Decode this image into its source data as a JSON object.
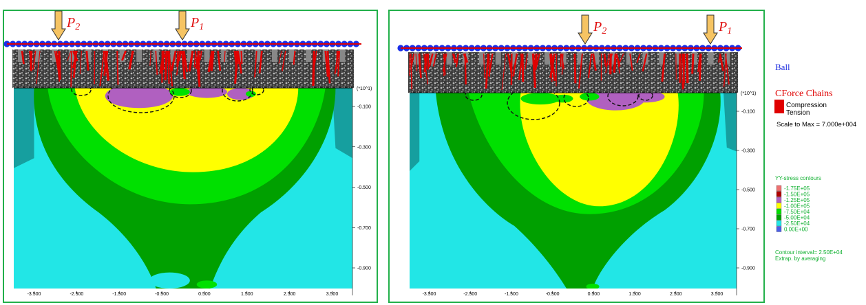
{
  "panels": [
    {
      "loads": [
        {
          "symbol": "P",
          "index": "2"
        },
        {
          "symbol": "P",
          "index": "1"
        }
      ],
      "y_unit": "(*10^1)",
      "yticks": [
        "-0.100",
        "-0.300",
        "-0.500",
        "-0.700",
        "-0.900"
      ],
      "xticks": [
        "-3.500",
        "-2.500",
        "-1.500",
        "-0.500",
        "0.500",
        "1.500",
        "2.500",
        "3.500"
      ]
    },
    {
      "loads": [
        {
          "symbol": "P",
          "index": "2"
        },
        {
          "symbol": "P",
          "index": "1"
        }
      ],
      "y_unit": "(*10^1)",
      "yticks": [
        "-0.100",
        "-0.300",
        "-0.500",
        "-0.700",
        "-0.900"
      ],
      "xticks": [
        "-3.500",
        "-2.500",
        "-1.500",
        "-0.500",
        "0.500",
        "1.500",
        "2.500",
        "3.500"
      ]
    }
  ],
  "legend": {
    "ball": "Ball",
    "force_title": "CForce Chains",
    "force_items": [
      "Compression",
      "Tension"
    ],
    "scale": "Scale to Max = 7.000e+004",
    "contour_title": "YY-stress contours",
    "levels": [
      "-1.75E+05",
      "-1.50E+05",
      "-1.25E+05",
      "-1.00E+05",
      "-7.50E+04",
      "-5.00E+04",
      "-2.50E+04",
      "0.00E+00"
    ],
    "interval": "Contour interval= 2.50E+04",
    "extrap": "Extrap. by averaging"
  }
}
